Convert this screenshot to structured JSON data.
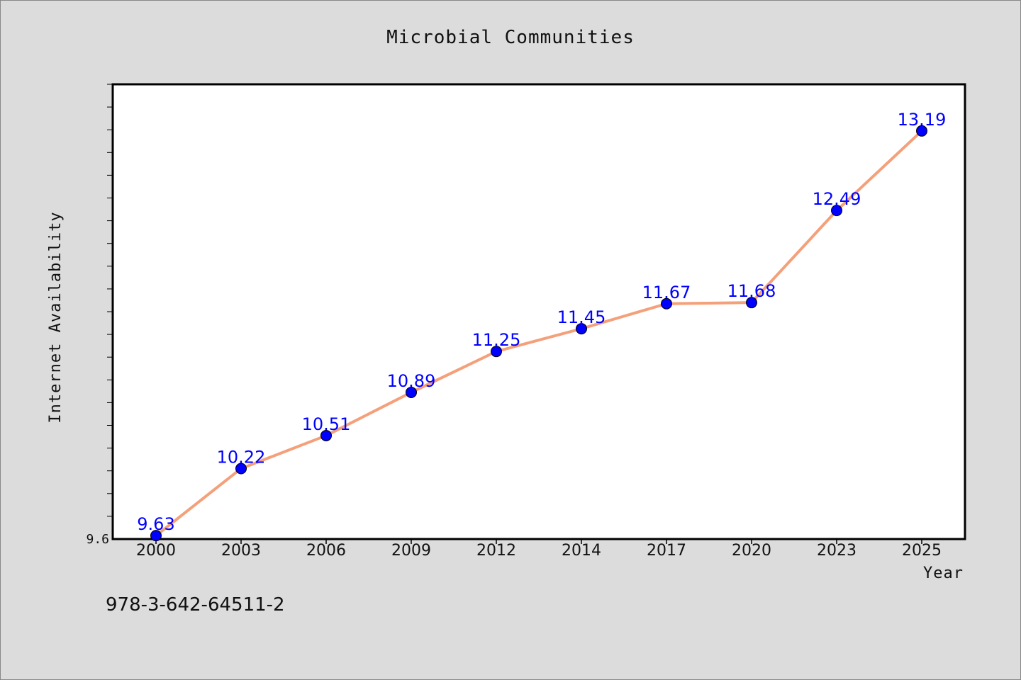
{
  "chart_data": {
    "type": "line",
    "title": "Microbial Communities",
    "xlabel": "Year",
    "ylabel": "Internet Availability",
    "categories": [
      "2000",
      "2003",
      "2006",
      "2009",
      "2012",
      "2014",
      "2017",
      "2020",
      "2023",
      "2025"
    ],
    "series": [
      {
        "values": [
          9.63,
          10.22,
          10.51,
          10.89,
          11.25,
          11.45,
          11.67,
          11.68,
          12.49,
          13.19
        ],
        "data_labels": [
          "9.63",
          "10.22",
          "10.51",
          "10.89",
          "11.25",
          "11.45",
          "11.67",
          "11.68",
          "12.49",
          "13.19"
        ],
        "line_color": "#f4a07a",
        "marker_color": "#0000ff",
        "label_color": "#0000ff"
      }
    ],
    "ylim": [
      9.6,
      13.6
    ],
    "y_tick_labels": [
      "9.6"
    ],
    "grid": false,
    "legend": "none"
  },
  "footer": {
    "text": "978-3-642-64511-2"
  },
  "colors": {
    "background": "#dcdcdc",
    "plot_background": "#ffffff",
    "axes": "#000000"
  }
}
